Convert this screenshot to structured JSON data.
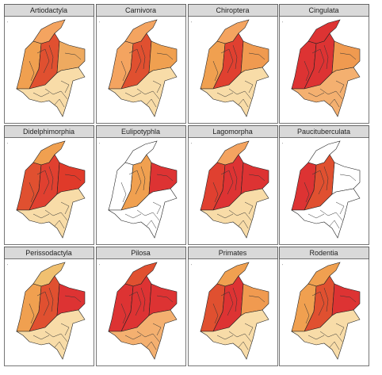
{
  "panels": [
    {
      "title": "Artiodactyla"
    },
    {
      "title": "Carnivora"
    },
    {
      "title": "Chiroptera"
    },
    {
      "title": "Cingulata"
    },
    {
      "title": "Didelphimorphia"
    },
    {
      "title": "Eulipotyphla"
    },
    {
      "title": "Lagomorpha"
    },
    {
      "title": "Paucituberculata"
    },
    {
      "title": "Perissodactyla"
    },
    {
      "title": "Pilosa"
    },
    {
      "title": "Primates"
    },
    {
      "title": "Rodentia"
    }
  ]
}
